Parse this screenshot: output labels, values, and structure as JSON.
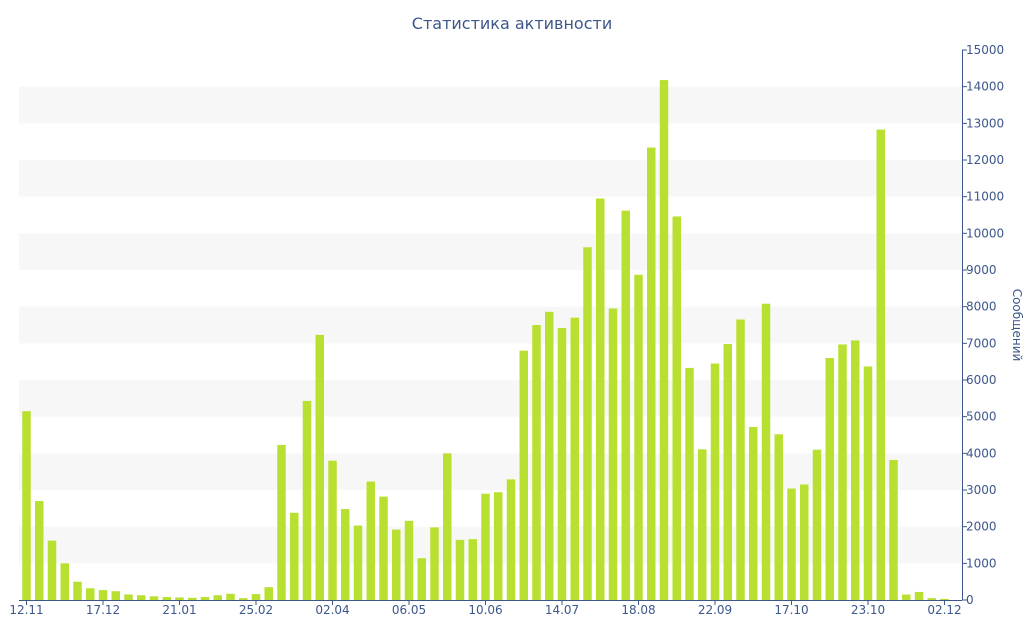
{
  "chart_data": {
    "type": "bar",
    "title": "Статистика активности",
    "ylabel": "Сообщений",
    "ylim": [
      0,
      15000
    ],
    "yticks": [
      0,
      1000,
      2000,
      3000,
      4000,
      5000,
      6000,
      7000,
      8000,
      9000,
      10000,
      11000,
      12000,
      13000,
      14000,
      15000
    ],
    "x_tick_labels": [
      "12.11",
      "17.12",
      "21.01",
      "25.02",
      "02.04",
      "06.05",
      "10.06",
      "14.07",
      "18.08",
      "22.09",
      "17.10",
      "23.10",
      "02.12"
    ],
    "y_axis_position": "right",
    "grid": "horizontal alternating bands",
    "legend": "none",
    "bar_color": "#b8e030",
    "axis_color": "#3d578b",
    "values": [
      5150,
      2700,
      1620,
      1000,
      500,
      320,
      270,
      240,
      150,
      130,
      100,
      80,
      70,
      60,
      80,
      130,
      170,
      50,
      160,
      350,
      4230,
      2380,
      5430,
      7230,
      3800,
      2480,
      2030,
      3230,
      2820,
      1920,
      2160,
      1140,
      1980,
      4000,
      1640,
      1660,
      2900,
      2940,
      3290,
      6800,
      7500,
      7860,
      7420,
      7700,
      9620,
      10950,
      7950,
      10620,
      8870,
      12340,
      14180,
      10460,
      6330,
      4110,
      6450,
      6980,
      7650,
      4720,
      8080,
      4520,
      3040,
      3150,
      4100,
      6600,
      6970,
      7080,
      6370,
      12830,
      3820,
      150,
      220,
      50,
      30
    ]
  }
}
